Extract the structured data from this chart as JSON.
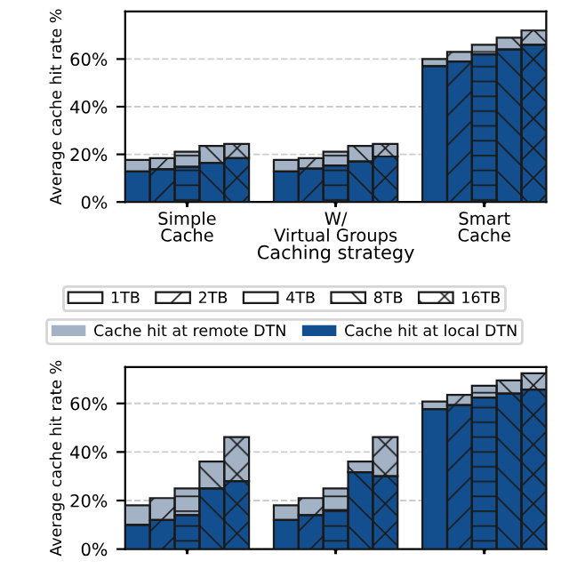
{
  "chart_data": [
    {
      "type": "bar",
      "stacked": true,
      "ylabel": "Average cache hit rate %",
      "xlabel": "Caching strategy",
      "categories": [
        null,
        null,
        null,
        null,
        null,
        null,
        null,
        null,
        null,
        null,
        null,
        null,
        null,
        null,
        null,
        null,
        null
      ],
      "annotations": [
        "Simple\nCache",
        "W/\nVirtual Groups",
        "Smart\nCache",
        "1TB",
        "2TB",
        "4TB",
        "8TB",
        "16TB"
      ],
      "ylim": [
        0,
        80
      ],
      "yticks": [
        {
          "value": 0,
          "label": "0%"
        },
        {
          "value": 20,
          "label": "20%"
        },
        {
          "value": 40,
          "label": "40%"
        },
        {
          "value": 60,
          "label": "60%"
        }
      ],
      "grid": "y",
      "legend": "bottom",
      "series": [
        {
          "name": "Cache hit at local DTN",
          "color": "#134f8e",
          "values": [
            12.8,
            13.7,
            14.8,
            16.4,
            18.4,
            null,
            12.8,
            14.0,
            15.3,
            17.0,
            19.1,
            null,
            57,
            59,
            62,
            64,
            66
          ]
        },
        {
          "name": "Cache hit at remote DTN",
          "color": "#a3b2c5",
          "values": [
            4.9,
            4.7,
            6.3,
            7.1,
            6.0,
            null,
            4.9,
            4.4,
            5.8,
            6.5,
            5.3,
            null,
            3,
            4,
            4,
            5,
            6
          ]
        }
      ]
    },
    {
      "type": "bar",
      "stacked": true,
      "ylabel": "Average cache hit rate %",
      "categories": [
        null,
        null,
        null,
        null,
        null,
        null,
        null,
        null,
        null,
        null,
        null,
        null,
        null,
        null,
        null,
        null,
        null
      ],
      "ylim": [
        0,
        75
      ],
      "yticks": [
        {
          "value": 0,
          "label": "0%"
        },
        {
          "value": 20,
          "label": "20%"
        },
        {
          "value": 40,
          "label": "40%"
        },
        {
          "value": 60,
          "label": "60%"
        }
      ],
      "grid": "y",
      "tick_labels": "y",
      "series": [
        {
          "color": "#134f8e",
          "values": [
            10,
            12,
            14,
            25,
            28,
            null,
            12,
            14,
            16,
            31.7,
            30,
            null,
            57.7,
            59.3,
            62.4,
            64.1,
            65.7
          ]
        },
        {
          "color": "#a3b2c5",
          "values": [
            8,
            9,
            11,
            11.1,
            18.1,
            null,
            6,
            7,
            9,
            4.4,
            16.1,
            null,
            3.1,
            4.2,
            4.9,
            5.4,
            6.7
          ]
        }
      ]
    }
  ]
}
